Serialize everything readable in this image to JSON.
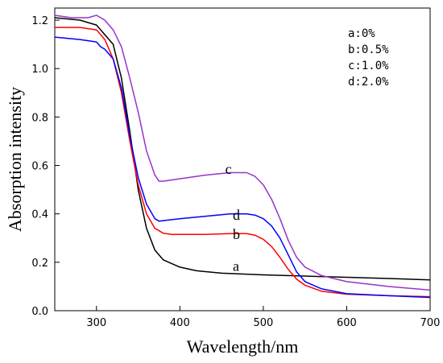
{
  "chart_data": {
    "type": "line",
    "xlabel": "Wavelength/nm",
    "ylabel": "Absorption intensity",
    "xlim": [
      250,
      700
    ],
    "ylim": [
      0.0,
      1.25
    ],
    "xticks": [
      300,
      400,
      500,
      600,
      700
    ],
    "xtick_labels": [
      "300",
      "400",
      "500",
      "600",
      "700"
    ],
    "yticks": [
      0.0,
      0.2,
      0.4,
      0.6,
      0.8,
      1.0,
      1.2
    ],
    "ytick_labels": [
      "0.0",
      "0.2",
      "0.4",
      "0.6",
      "0.8",
      "1.0",
      "1.2"
    ],
    "grid": false,
    "legend_position": "top-right",
    "legend_entries": [
      "a:0%",
      "b:0.5%",
      "c:1.0%",
      "d:2.0%"
    ],
    "series": [
      {
        "name": "a",
        "color": "#000000",
        "label_at": [
          446,
          0.185
        ],
        "x": [
          250,
          280,
          300,
          320,
          330,
          340,
          350,
          360,
          370,
          380,
          400,
          420,
          450,
          500,
          550,
          600,
          650,
          700
        ],
        "y": [
          1.21,
          1.2,
          1.18,
          1.1,
          0.96,
          0.74,
          0.5,
          0.34,
          0.25,
          0.21,
          0.18,
          0.165,
          0.155,
          0.148,
          0.143,
          0.138,
          0.133,
          0.127
        ]
      },
      {
        "name": "b",
        "color": "#ff0000",
        "label_at": [
          446,
          0.315
        ],
        "x": [
          250,
          280,
          300,
          310,
          320,
          330,
          340,
          350,
          360,
          370,
          380,
          390,
          400,
          430,
          460,
          480,
          490,
          500,
          510,
          520,
          530,
          540,
          550,
          570,
          600,
          650,
          700
        ],
        "y": [
          1.17,
          1.17,
          1.16,
          1.12,
          1.04,
          0.9,
          0.7,
          0.52,
          0.4,
          0.34,
          0.32,
          0.315,
          0.315,
          0.315,
          0.318,
          0.318,
          0.312,
          0.295,
          0.265,
          0.22,
          0.17,
          0.13,
          0.105,
          0.08,
          0.068,
          0.062,
          0.058
        ]
      },
      {
        "name": "c",
        "color": "#9932cc",
        "label_at": [
          437,
          0.585
        ],
        "x": [
          250,
          270,
          290,
          300,
          305,
          310,
          320,
          330,
          340,
          350,
          360,
          370,
          375,
          380,
          400,
          430,
          460,
          480,
          490,
          500,
          510,
          520,
          530,
          540,
          550,
          570,
          600,
          650,
          700
        ],
        "y": [
          1.22,
          1.21,
          1.21,
          1.22,
          1.21,
          1.2,
          1.16,
          1.09,
          0.96,
          0.82,
          0.66,
          0.56,
          0.535,
          0.535,
          0.545,
          0.56,
          0.57,
          0.57,
          0.555,
          0.52,
          0.46,
          0.38,
          0.29,
          0.22,
          0.18,
          0.145,
          0.12,
          0.1,
          0.085
        ]
      },
      {
        "name": "d",
        "color": "#0000ff",
        "label_at": [
          446,
          0.395
        ],
        "x": [
          250,
          280,
          300,
          305,
          310,
          320,
          330,
          340,
          350,
          360,
          370,
          375,
          380,
          400,
          430,
          460,
          480,
          490,
          500,
          510,
          520,
          530,
          540,
          550,
          570,
          600,
          650,
          700
        ],
        "y": [
          1.13,
          1.12,
          1.11,
          1.09,
          1.08,
          1.04,
          0.92,
          0.72,
          0.55,
          0.44,
          0.38,
          0.37,
          0.372,
          0.38,
          0.39,
          0.4,
          0.4,
          0.395,
          0.38,
          0.35,
          0.3,
          0.23,
          0.16,
          0.12,
          0.09,
          0.07,
          0.062,
          0.055
        ]
      }
    ]
  }
}
